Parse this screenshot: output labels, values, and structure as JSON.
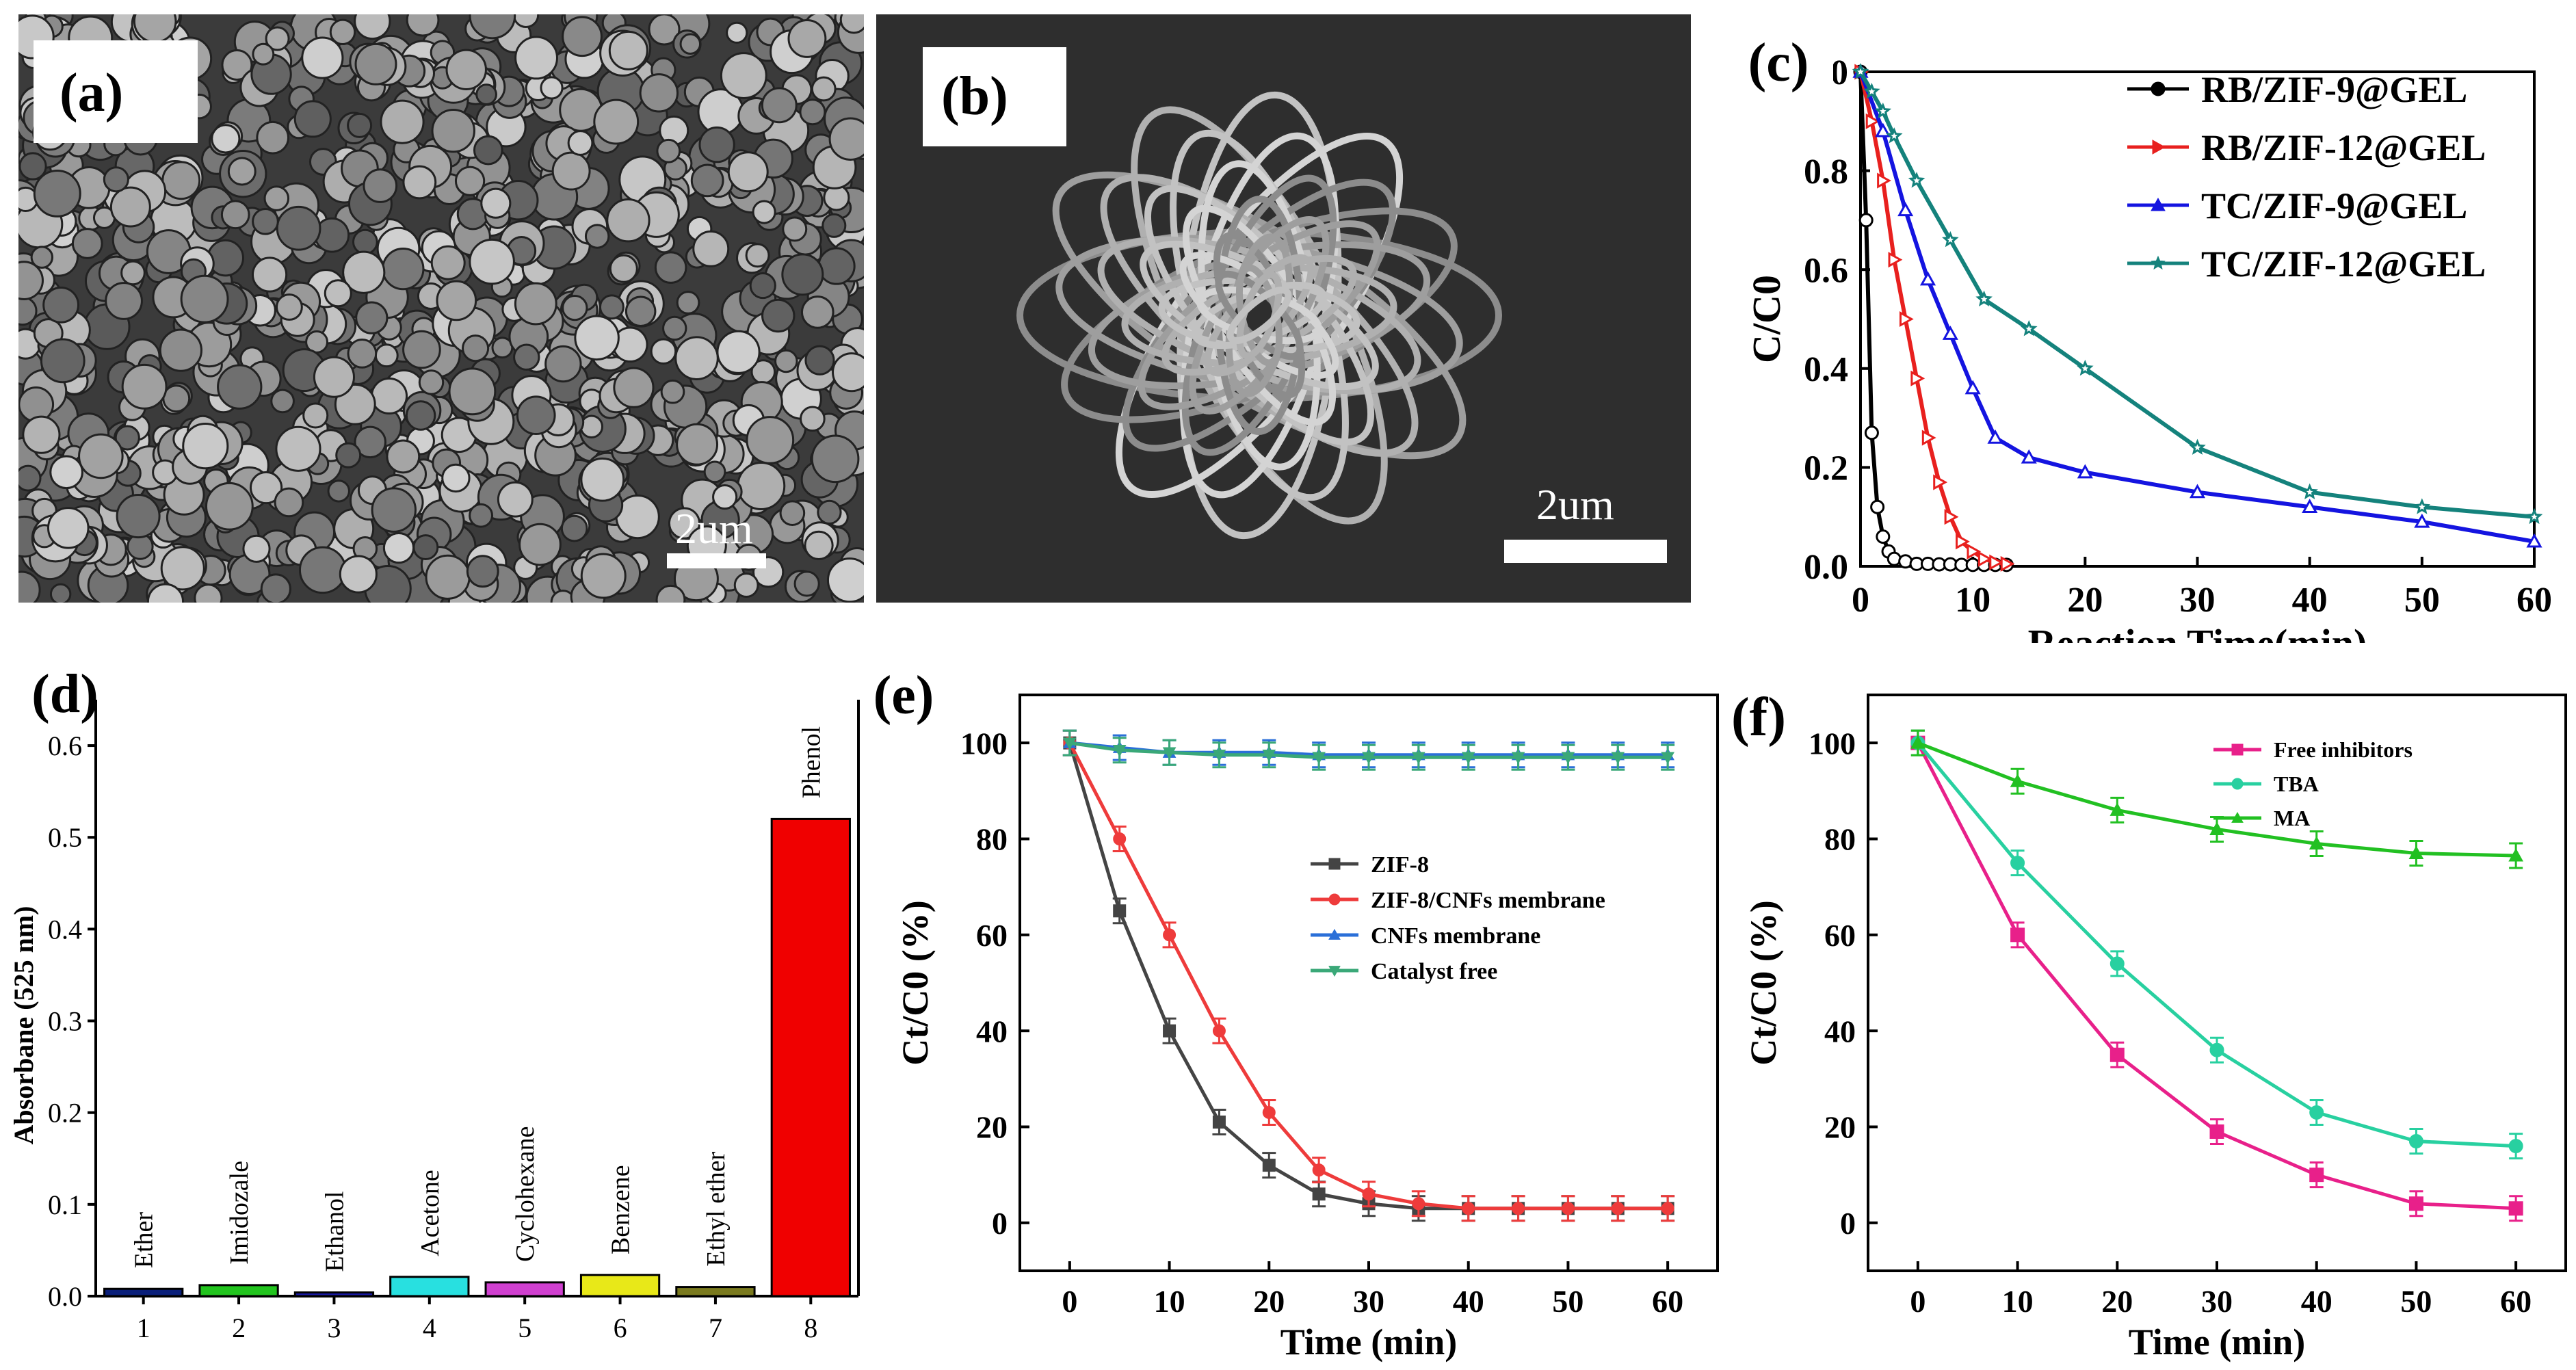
{
  "panels": {
    "a": {
      "label": "(a)",
      "scale": "2um"
    },
    "b": {
      "label": "(b)",
      "scale": "2um"
    },
    "c": {
      "label": "(c)"
    },
    "d": {
      "label": "(d)"
    },
    "e": {
      "label": "(e)"
    },
    "f": {
      "label": "(f)"
    }
  },
  "chart_data": [
    {
      "id": "c",
      "type": "line",
      "xlabel": "Reaction Time(min)",
      "ylabel": "C/C0",
      "xlim": [
        0,
        60
      ],
      "ylim": [
        0,
        1.0
      ],
      "xticks": [
        0,
        10,
        20,
        30,
        40,
        50,
        60
      ],
      "yticks": [
        0.0,
        0.2,
        0.4,
        0.6,
        0.8,
        1.0
      ],
      "ytick_labels": [
        "0.0",
        "0.2",
        "0.4",
        "0.6",
        "0.8",
        "1.0"
      ],
      "legend_position": "top-right",
      "series": [
        {
          "name": "RB/ZIF-9@GEL",
          "color": "#000000",
          "marker": "circle",
          "x": [
            0,
            0.5,
            1,
            1.5,
            2,
            2.5,
            3,
            4,
            5,
            6,
            7,
            8,
            9,
            10,
            11,
            12,
            13
          ],
          "y": [
            1.0,
            0.7,
            0.27,
            0.12,
            0.06,
            0.03,
            0.015,
            0.01,
            0.005,
            0.005,
            0.004,
            0.004,
            0.003,
            0.003,
            0.003,
            0.003,
            0.003
          ]
        },
        {
          "name": "RB/ZIF-12@GEL",
          "color": "#e8201e",
          "marker": "triangle-right",
          "x": [
            0,
            1,
            2,
            3,
            4,
            5,
            6,
            7,
            8,
            9,
            10,
            11,
            12,
            13
          ],
          "y": [
            1.0,
            0.9,
            0.78,
            0.62,
            0.5,
            0.38,
            0.26,
            0.17,
            0.1,
            0.05,
            0.03,
            0.015,
            0.008,
            0.005
          ]
        },
        {
          "name": "TC/ZIF-9@GEL",
          "color": "#1414e0",
          "marker": "triangle",
          "x": [
            0,
            2,
            4,
            6,
            8,
            10,
            12,
            15,
            20,
            30,
            40,
            50,
            60
          ],
          "y": [
            1.0,
            0.88,
            0.72,
            0.58,
            0.47,
            0.36,
            0.26,
            0.22,
            0.19,
            0.15,
            0.12,
            0.09,
            0.05
          ]
        },
        {
          "name": "TC/ZIF-12@GEL",
          "color": "#14827c",
          "marker": "star",
          "x": [
            0,
            1,
            2,
            3,
            5,
            8,
            11,
            15,
            20,
            30,
            40,
            50,
            60
          ],
          "y": [
            1.0,
            0.96,
            0.92,
            0.87,
            0.78,
            0.66,
            0.54,
            0.48,
            0.4,
            0.24,
            0.15,
            0.12,
            0.1
          ]
        }
      ]
    },
    {
      "id": "d",
      "type": "bar",
      "ylabel": "Absorbane (525 nm)",
      "ylim": [
        0,
        0.65
      ],
      "yticks": [
        0.0,
        0.1,
        0.2,
        0.3,
        0.4,
        0.5,
        0.6
      ],
      "ytick_labels": [
        "0.0",
        "0.1",
        "0.2",
        "0.3",
        "0.4",
        "0.5",
        "0.6"
      ],
      "categories": [
        "1",
        "2",
        "3",
        "4",
        "5",
        "6",
        "7",
        "8"
      ],
      "bar_labels": [
        "Ether",
        "Imidozale",
        "Ethanol",
        "Acetone",
        "Cyclohexane",
        "Benzene",
        "Ethyl ether",
        "Phenol"
      ],
      "values": [
        0.008,
        0.012,
        0.004,
        0.021,
        0.015,
        0.023,
        0.01,
        0.52
      ],
      "colors": [
        "#0a1f7a",
        "#22c41e",
        "#1a1aa8",
        "#28e0e0",
        "#d040d0",
        "#e8e818",
        "#7a7a1e",
        "#f00000"
      ]
    },
    {
      "id": "e",
      "type": "line",
      "xlabel": "Time (min)",
      "ylabel": "Ct/C0 (%)",
      "xlim": [
        -5,
        65
      ],
      "ylim": [
        -10,
        110
      ],
      "xticks": [
        0,
        10,
        20,
        30,
        40,
        50,
        60
      ],
      "yticks": [
        0,
        20,
        40,
        60,
        80,
        100
      ],
      "legend_position": "center-right",
      "series": [
        {
          "name": "ZIF-8",
          "color": "#444444",
          "marker": "square",
          "x": [
            0,
            5,
            10,
            15,
            20,
            25,
            30,
            35,
            40,
            45,
            50,
            55,
            60
          ],
          "y": [
            100,
            65,
            40,
            21,
            12,
            6,
            4,
            3,
            3,
            3,
            3,
            3,
            3
          ]
        },
        {
          "name": "ZIF-8/CNFs membrane",
          "color": "#ee3b3b",
          "marker": "circle",
          "x": [
            0,
            5,
            10,
            15,
            20,
            25,
            30,
            35,
            40,
            45,
            50,
            55,
            60
          ],
          "y": [
            100,
            80,
            60,
            40,
            23,
            11,
            6,
            4,
            3,
            3,
            3,
            3,
            3
          ]
        },
        {
          "name": "CNFs membrane",
          "color": "#2a6fd8",
          "marker": "triangle",
          "x": [
            0,
            5,
            10,
            15,
            20,
            25,
            30,
            35,
            40,
            45,
            50,
            55,
            60
          ],
          "y": [
            100,
            99,
            98,
            98,
            98,
            97.5,
            97.5,
            97.5,
            97.5,
            97.5,
            97.5,
            97.5,
            97.5
          ]
        },
        {
          "name": "Catalyst free",
          "color": "#3aa878",
          "marker": "triangle-down",
          "x": [
            0,
            5,
            10,
            15,
            20,
            25,
            30,
            35,
            40,
            45,
            50,
            55,
            60
          ],
          "y": [
            100,
            98.5,
            98,
            97.5,
            97.5,
            97,
            97,
            97,
            97,
            97,
            97,
            97,
            97
          ]
        }
      ]
    },
    {
      "id": "f",
      "type": "line",
      "xlabel": "Time (min)",
      "ylabel": "Ct/C0 (%)",
      "xlim": [
        -5,
        65
      ],
      "ylim": [
        -10,
        110
      ],
      "xticks": [
        0,
        10,
        20,
        30,
        40,
        50,
        60
      ],
      "yticks": [
        0,
        20,
        40,
        60,
        80,
        100
      ],
      "legend_position": "top-right",
      "series": [
        {
          "name": "Free inhibitors",
          "color": "#e8208a",
          "marker": "square",
          "x": [
            0,
            10,
            20,
            30,
            40,
            50,
            60
          ],
          "y": [
            100,
            60,
            35,
            19,
            10,
            4,
            3
          ]
        },
        {
          "name": "TBA",
          "color": "#28d0a0",
          "marker": "circle",
          "x": [
            0,
            10,
            20,
            30,
            40,
            50,
            60
          ],
          "y": [
            100,
            75,
            54,
            36,
            23,
            17,
            16
          ]
        },
        {
          "name": "MA",
          "color": "#22c022",
          "marker": "triangle",
          "x": [
            0,
            10,
            20,
            30,
            40,
            50,
            60
          ],
          "y": [
            100,
            92,
            86,
            82,
            79,
            77,
            76.5
          ]
        }
      ]
    }
  ]
}
